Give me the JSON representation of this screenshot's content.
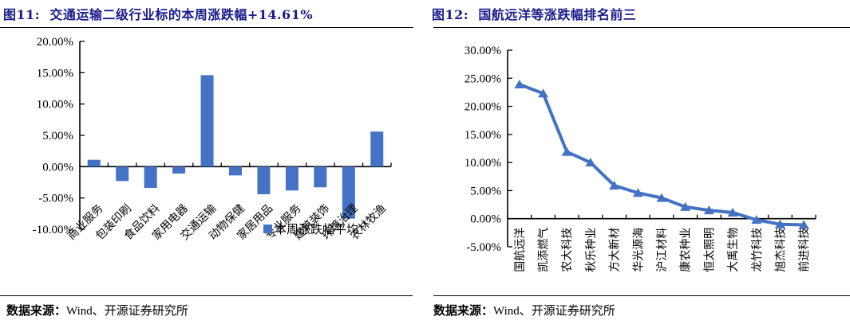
{
  "colors": {
    "accent_blue": "#4472C4",
    "title_navy": "#1a1a8c",
    "axis_black": "#000000",
    "background": "#ffffff"
  },
  "chart_data": [
    {
      "type": "bar",
      "title": "图11:  交通运输二级行业标的本周涨跌幅+14.61%",
      "categories": [
        "商业服务",
        "包装印刷",
        "食品饮料",
        "家用电器",
        "交通运输",
        "动物保健",
        "家居用品",
        "专业服务",
        "建筑装饰",
        "环境治理",
        "农林牧渔"
      ],
      "values": [
        1.1,
        -2.3,
        -3.4,
        -1.1,
        14.61,
        -1.4,
        -4.4,
        -3.8,
        -3.3,
        -8.3,
        5.6
      ],
      "unit": "%",
      "ylim": [
        -10,
        20
      ],
      "ytick_step": 5,
      "ytick_labels": [
        "20.00%",
        "15.00%",
        "10.00%",
        "5.00%",
        "0.00%",
        "-5.00%",
        "-10.00%"
      ],
      "grid": false,
      "legend": [
        "本周涨跌幅平均"
      ],
      "legend_position": "inside-bottom-right",
      "bar_color": "#4472C4"
    },
    {
      "type": "line",
      "title": "图12:  国航远洋等涨跌幅排名前三",
      "categories": [
        "国航远洋",
        "凯添燃气",
        "农大科技",
        "秋乐种业",
        "方大新材",
        "华光源海",
        "沪江材料",
        "康农种业",
        "恒太照明",
        "大禹生物",
        "龙竹科技",
        "旭杰科技",
        "前进科技"
      ],
      "values": [
        23.9,
        22.3,
        11.9,
        10.0,
        5.9,
        4.6,
        3.7,
        2.1,
        1.5,
        1.1,
        -0.2,
        -1.0,
        -1.1
      ],
      "unit": "%",
      "ylim": [
        -5,
        30
      ],
      "ytick_step": 5,
      "ytick_labels": [
        "30.00%",
        "25.00%",
        "20.00%",
        "15.00%",
        "10.00%",
        "5.00%",
        "0.00%",
        "-5.00%"
      ],
      "grid": false,
      "legend": [],
      "marker": "triangle-up",
      "line_color": "#4472C4"
    }
  ],
  "panels": [
    {
      "source_label": "数据来源：",
      "source_text": "Wind、开源证券研究所"
    },
    {
      "source_label": "数据来源：",
      "source_text": "Wind、开源证券研究所"
    }
  ]
}
